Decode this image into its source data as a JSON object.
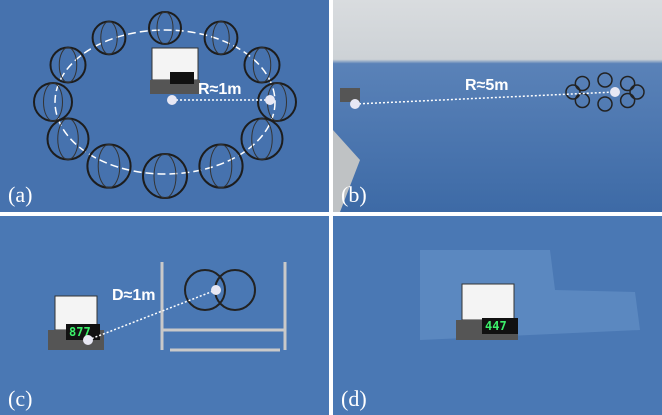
{
  "panels": [
    {
      "label": "(a)",
      "annotation": "R≈1m"
    },
    {
      "label": "(b)",
      "annotation": "R≈5m"
    },
    {
      "label": "(c)",
      "annotation": "D≈1m",
      "display": "877"
    },
    {
      "label": "(d)",
      "display": "447"
    }
  ]
}
